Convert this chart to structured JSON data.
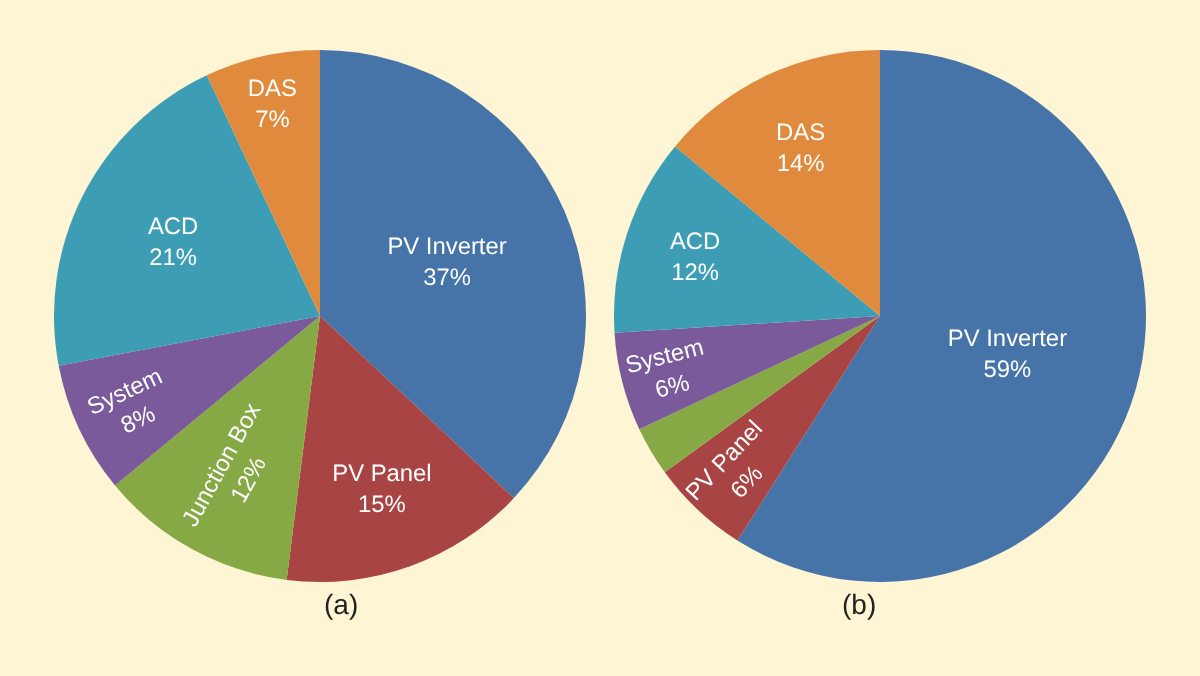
{
  "chart_data": [
    {
      "type": "pie",
      "title": "(a)",
      "categories": [
        "PV Inverter",
        "PV Panel",
        "Junction Box",
        "System",
        "ACD",
        "DAS"
      ],
      "values": [
        37,
        15,
        12,
        8,
        21,
        7
      ],
      "value_labels": [
        "37%",
        "15%",
        "12%",
        "8%",
        "21%",
        "7%"
      ],
      "colors": [
        "#4674a8",
        "#a84444",
        "#86a845",
        "#7a5a9a",
        "#3d9db5",
        "#df8a3c"
      ],
      "legend": false
    },
    {
      "type": "pie",
      "title": "(b)",
      "categories": [
        "PV Inverter",
        "PV Panel",
        null,
        "System",
        "ACD",
        "DAS"
      ],
      "values": [
        59,
        6,
        3,
        6,
        12,
        14
      ],
      "value_labels": [
        "59%",
        "6%",
        null,
        "6%",
        "12%",
        "14%"
      ],
      "colors": [
        "#4674a8",
        "#a84444",
        "#86a845",
        "#7a5a9a",
        "#3d9db5",
        "#df8a3c"
      ],
      "legend": false
    }
  ]
}
